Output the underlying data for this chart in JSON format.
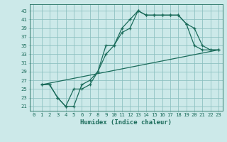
{
  "xlabel": "Humidex (Indice chaleur)",
  "bg_color": "#cce9e9",
  "grid_color": "#8abfbf",
  "line_color": "#1a6b5a",
  "xlim": [
    -0.5,
    23.5
  ],
  "ylim": [
    20.0,
    44.5
  ],
  "xticks": [
    0,
    1,
    2,
    3,
    4,
    5,
    6,
    7,
    8,
    9,
    10,
    11,
    12,
    13,
    14,
    15,
    16,
    17,
    18,
    19,
    20,
    21,
    22,
    23
  ],
  "yticks": [
    21,
    23,
    25,
    27,
    29,
    31,
    33,
    35,
    37,
    39,
    41,
    43
  ],
  "curve1_x": [
    1,
    2,
    3,
    4,
    5,
    6,
    7,
    8,
    9,
    10,
    11,
    12,
    13,
    14,
    15,
    16,
    17,
    18,
    19,
    20,
    21,
    22,
    23
  ],
  "curve1_y": [
    26,
    26,
    23,
    21,
    21,
    26,
    27,
    29,
    33,
    35,
    38,
    39,
    43,
    42,
    42,
    42,
    42,
    42,
    40,
    39,
    35,
    34,
    34
  ],
  "curve2_x": [
    1,
    2,
    3,
    4,
    5,
    6,
    7,
    8,
    9,
    10,
    11,
    12,
    13,
    14,
    15,
    16,
    17,
    18,
    19,
    20,
    21,
    22,
    23
  ],
  "curve2_y": [
    26,
    26,
    23,
    21,
    25,
    25,
    26,
    29,
    35,
    35,
    39,
    41,
    43,
    42,
    42,
    42,
    42,
    42,
    40,
    35,
    34,
    34,
    34
  ],
  "line3_x": [
    1,
    23
  ],
  "line3_y": [
    26,
    34
  ],
  "tick_fontsize": 5.2,
  "xlabel_fontsize": 6.5
}
